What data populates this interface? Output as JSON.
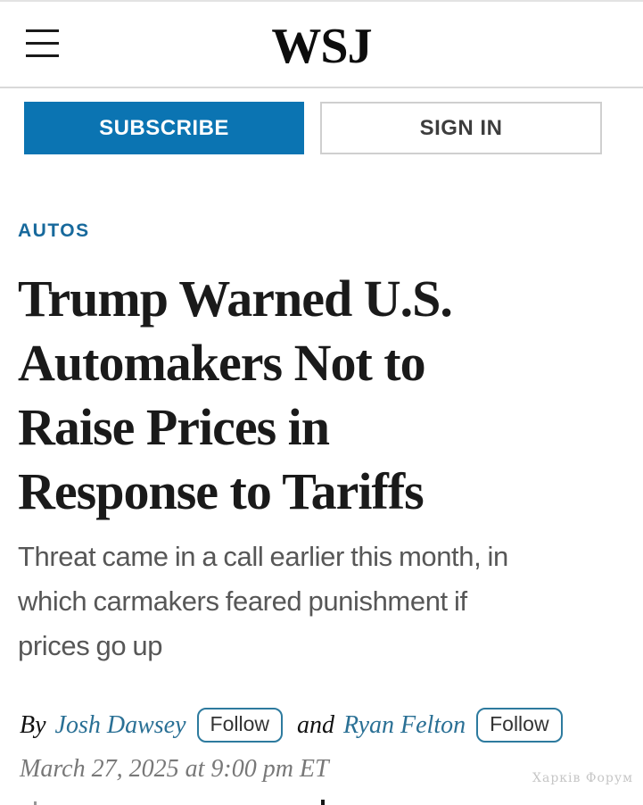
{
  "header": {
    "logo_text": "WSJ",
    "menu_icon": "hamburger-icon"
  },
  "toolbar": {
    "subscribe_label": "SUBSCRIBE",
    "signin_label": "SIGN IN"
  },
  "article": {
    "category": "AUTOS",
    "headline": "Trump Warned U.S. Automakers Not to Raise Prices in Response to Tariffs",
    "headline_lines": [
      "Trump Warned U.S.",
      "Automakers Not to",
      "Raise Prices in",
      "Response to Tariffs"
    ],
    "subtitle": "Threat came in a call earlier this month, in which carmakers feared punishment if prices go up",
    "subtitle_lines": [
      "Threat came in a call earlier this month, in",
      "which carmakers feared punishment if",
      "prices go up"
    ],
    "byline": {
      "prefix": "By",
      "author1": "Josh Dawsey",
      "follow1_label": "Follow",
      "connector": "and",
      "author2": "Ryan Felton",
      "follow2_label": "Follow"
    },
    "timestamp": "March 27, 2025 at 9:00 pm ET"
  },
  "watermark": "Харків Форум",
  "colors": {
    "brand_blue": "#0b74b2",
    "link_blue": "#2a7095",
    "category_blue": "#17699c",
    "follow_border_blue": "#2d7a9e",
    "headline_black": "#1a1a1a",
    "subtitle_gray": "#575757",
    "timestamp_gray": "#787878",
    "divider_gray": "#d9d9d9"
  }
}
